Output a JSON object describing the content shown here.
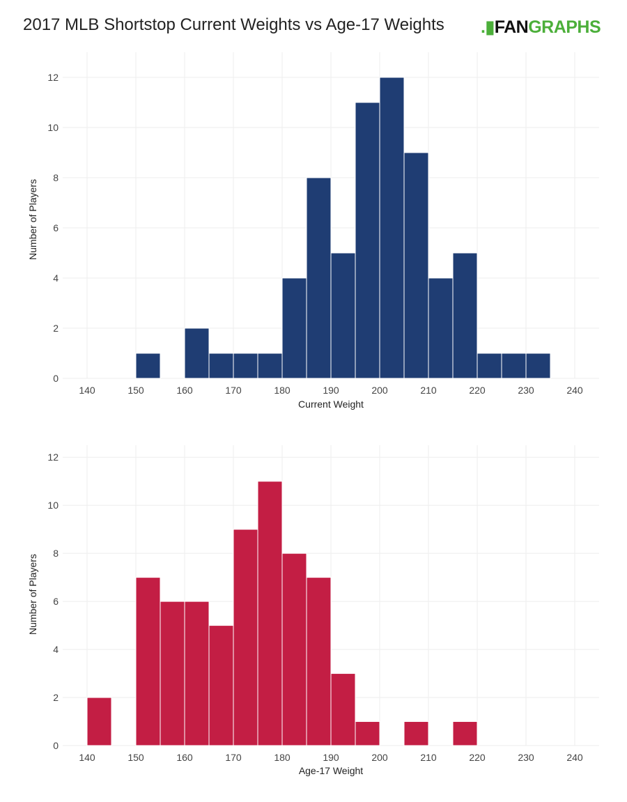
{
  "title": "2017 MLB Shortstop Current Weights vs Age-17 Weights",
  "logo": {
    "text_dark": "FAN",
    "text_green": "GRAPHS"
  },
  "chart_data": [
    {
      "type": "bar",
      "xlabel": "Current Weight",
      "ylabel": "Number of Players",
      "bin_width": 5,
      "bin_starts": [
        150,
        155,
        160,
        165,
        170,
        175,
        180,
        185,
        190,
        195,
        200,
        205,
        210,
        215,
        220,
        225,
        230
      ],
      "values": [
        1,
        0,
        2,
        1,
        1,
        1,
        4,
        8,
        5,
        11,
        12,
        9,
        4,
        5,
        1,
        1,
        1
      ],
      "xlim": [
        135,
        245
      ],
      "ylim": [
        0,
        13
      ],
      "xticks": [
        140,
        150,
        160,
        170,
        180,
        190,
        200,
        210,
        220,
        230,
        240
      ],
      "yticks": [
        0,
        2,
        4,
        6,
        8,
        10,
        12
      ],
      "color": "#1f3d73",
      "grid": true
    },
    {
      "type": "bar",
      "xlabel": "Age-17 Weight",
      "ylabel": "Number of Players",
      "bin_width": 5,
      "bin_starts": [
        140,
        145,
        150,
        155,
        160,
        165,
        170,
        175,
        180,
        185,
        190,
        195,
        200,
        205,
        210,
        215
      ],
      "values": [
        2,
        0,
        7,
        6,
        6,
        5,
        9,
        11,
        8,
        7,
        3,
        1,
        0,
        1,
        0,
        1
      ],
      "xlim": [
        135,
        245
      ],
      "ylim": [
        0,
        12.5
      ],
      "xticks": [
        140,
        150,
        160,
        170,
        180,
        190,
        200,
        210,
        220,
        230,
        240
      ],
      "yticks": [
        0,
        2,
        4,
        6,
        8,
        10,
        12
      ],
      "color": "#c31e44",
      "grid": true
    }
  ]
}
